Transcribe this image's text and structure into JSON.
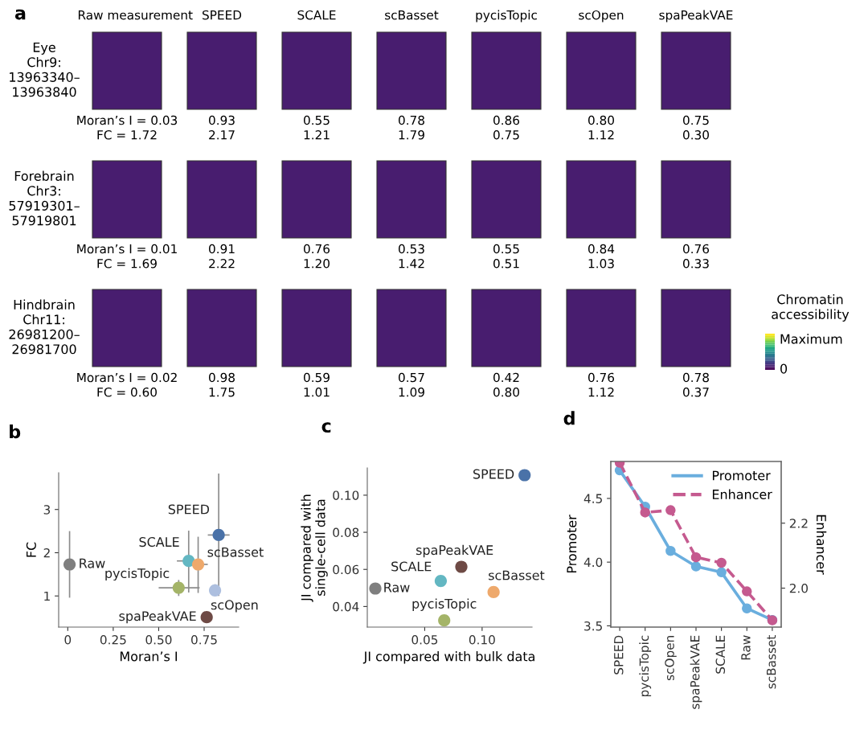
{
  "chart_data": [
    {
      "type": "other",
      "title": "a",
      "categories": [
        "Raw measurement",
        "SPEED",
        "SCALE",
        "scBasset",
        "pycisTopic",
        "scOpen",
        "spaPeakVAE"
      ],
      "y_categories": [
        "Eye\nChr9:\n13963340–\n13963840",
        "Forebrain\nChr3:\n57919301–\n57919801",
        "Hindbrain\nChr11:\n26981200–\n26981700"
      ],
      "cell_labels": [
        [
          "Moran’s I = 0.03\nFC = 1.72",
          "0.93\n2.17",
          "0.55\n1.21",
          "0.78\n1.79",
          "0.86\n0.75",
          "0.80\n1.12",
          "0.75\n0.30"
        ],
        [
          "Moran’s I = 0.01\nFC = 1.69",
          "0.91\n2.22",
          "0.76\n1.20",
          "0.53\n1.42",
          "0.55\n0.51",
          "0.84\n1.03",
          "0.76\n0.33"
        ],
        [
          "Moran’s I = 0.02\nFC = 0.60",
          "0.98\n1.75",
          "0.59\n1.01",
          "0.57\n1.09",
          "0.42\n0.80",
          "0.76\n1.12",
          "0.78\n0.37"
        ]
      ],
      "clabel": "Chromatin\naccessibility",
      "annotations": [
        "Maximum",
        "0"
      ]
    },
    {
      "type": "scatter",
      "title": "b",
      "xlabel": "Moran’s I",
      "ylabel": "FC",
      "xlim": [
        -0.05,
        0.94
      ],
      "xticks": [
        0,
        0.25,
        {
          "value": 0.5,
          "label": "0.50"
        },
        0.75
      ],
      "ylim": [
        0.28,
        3.85
      ],
      "yticks": [
        1,
        2,
        3
      ],
      "grid": false,
      "legend": false,
      "marker": "circle",
      "series": [
        {
          "name": "Raw",
          "color": "#7f7f7f",
          "x": [
            0.01
          ],
          "values": [
            1.73
          ],
          "errors": [
            [
              0.96,
              2.5
            ]
          ],
          "xerrors": [
            null
          ]
        },
        {
          "name": "SPEED",
          "color": "#4a72a8",
          "x": [
            0.83
          ],
          "values": [
            2.41
          ],
          "errors": [
            [
              1.0,
              3.83
            ]
          ],
          "xerrors": [
            [
              0.77,
              0.89
            ]
          ]
        },
        {
          "name": "SCALE",
          "color": "#63b7c2",
          "x": [
            0.665
          ],
          "values": [
            1.81
          ],
          "errors": [
            [
              1.08,
              2.51
            ]
          ],
          "xerrors": [
            [
              0.6,
              0.72
            ]
          ]
        },
        {
          "name": "scBasset",
          "color": "#eea96c",
          "x": [
            0.717
          ],
          "values": [
            1.73
          ],
          "errors": [
            [
              1.07,
              2.37
            ]
          ],
          "xerrors": [
            [
              0.66,
              0.77
            ]
          ]
        },
        {
          "name": "pycisTopic",
          "color": "#a4b468",
          "x": [
            0.61
          ],
          "values": [
            1.19
          ],
          "errors": [
            [
              1.0,
              1.37
            ]
          ],
          "xerrors": [
            [
              0.5,
              0.725
            ]
          ]
        },
        {
          "name": "scOpen",
          "color": "#adbfdf",
          "x": [
            0.81
          ],
          "values": [
            1.13
          ],
          "errors": [
            [
              1.02,
              1.27
            ]
          ],
          "xerrors": [
            [
              0.78,
              0.83
            ]
          ]
        },
        {
          "name": "spaPeakVAE",
          "color": "#6e4a45",
          "x": [
            0.764
          ],
          "values": [
            0.51
          ],
          "errors": [
            null
          ],
          "xerrors": [
            null
          ]
        }
      ]
    },
    {
      "type": "scatter",
      "title": "c",
      "xlabel": "JI compared with bulk data",
      "ylabel": "JI compared with\nsingle-cell data",
      "xlim": [
        0.0,
        0.1435
      ],
      "xticks": [
        0.05,
        {
          "value": 0.1,
          "label": "0.10"
        }
      ],
      "ylim": [
        0.0289,
        0.1147
      ],
      "yticks": [
        0.04,
        0.06,
        0.08,
        {
          "value": 0.1,
          "label": "0.10"
        }
      ],
      "grid": false,
      "legend": false,
      "marker": "circle",
      "series": [
        {
          "name": "SPEED",
          "color": "#4a72a8",
          "x": [
            0.137
          ],
          "values": [
            0.1108
          ]
        },
        {
          "name": "spaPeakVAE",
          "color": "#6e4a45",
          "x": [
            0.0819
          ],
          "values": [
            0.0614
          ]
        },
        {
          "name": "SCALE",
          "color": "#63b7c2",
          "x": [
            0.064
          ],
          "values": [
            0.0538
          ]
        },
        {
          "name": "scBasset",
          "color": "#eea96c",
          "x": [
            0.11
          ],
          "values": [
            0.0478
          ]
        },
        {
          "name": "Raw",
          "color": "#7f7f7f",
          "x": [
            0.007
          ],
          "values": [
            0.0497
          ]
        },
        {
          "name": "pycisTopic",
          "color": "#a4b468",
          "x": [
            0.067
          ],
          "values": [
            0.0325
          ]
        }
      ]
    },
    {
      "type": "line",
      "title": "d",
      "ylabel": "Promoter",
      "y2label": "Enhancer",
      "categories": [
        "SPEED",
        "pycisTopic",
        "scOpen",
        "spaPeakVAE",
        "SCALE",
        "Raw",
        "scBasset"
      ],
      "ylim": [
        3.49,
        4.79
      ],
      "yticks": [
        3.5,
        {
          "value": 4.0,
          "label": "4.0"
        },
        4.5
      ],
      "y2lim": [
        1.88,
        2.39
      ],
      "y2ticks": [
        {
          "value": 2.0,
          "label": "2.0"
        },
        2.2
      ],
      "grid": false,
      "legend": "top right",
      "marker": "circle",
      "series": [
        {
          "name": "Promoter",
          "color": "#6aaede",
          "line_style": "solid",
          "values": [
            4.72,
            4.435,
            4.088,
            3.966,
            3.92,
            3.637,
            3.546
          ]
        },
        {
          "name": "Enhancer",
          "color": "#c55a8f",
          "line_style": "dashed",
          "axis": "y2",
          "values": [
            2.386,
            2.233,
            2.24,
            2.095,
            2.078,
            1.99,
            1.901
          ]
        }
      ]
    }
  ]
}
